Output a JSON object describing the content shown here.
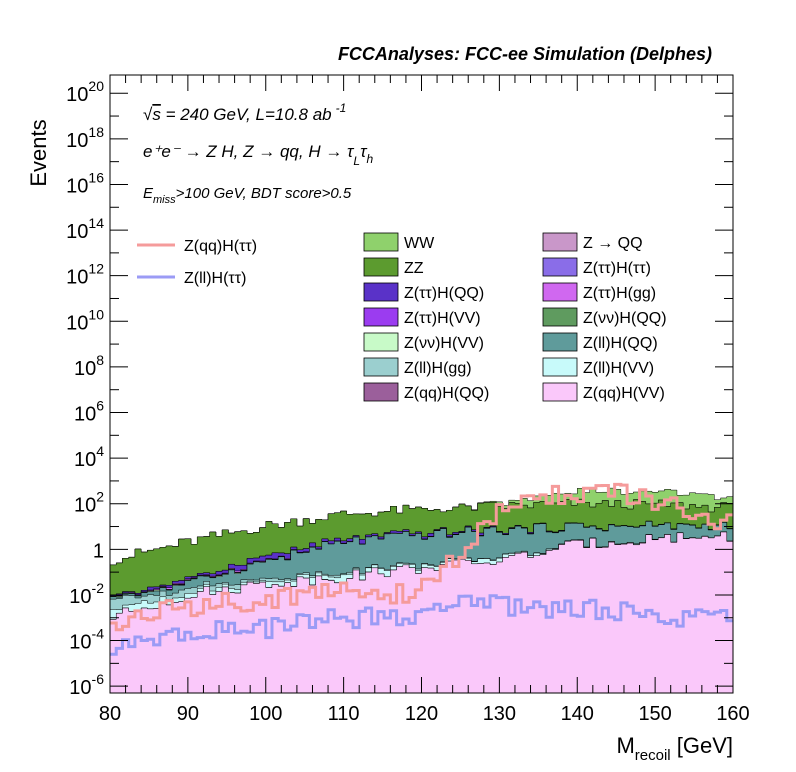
{
  "chart_data": {
    "type": "area",
    "title": "FCCAnalyses: FCC-ee Simulation (Delphes)",
    "xlabel": "M",
    "xlabel_sub": "recoil",
    "xlabel_unit": " [GeV]",
    "ylabel": "Events",
    "xlim": [
      80,
      160
    ],
    "ylim_log10": [
      -6.3,
      20.8
    ],
    "log_y": true,
    "x_ticks": [
      "80",
      "90",
      "100",
      "110",
      "120",
      "130",
      "140",
      "150",
      "160"
    ],
    "y_ticks": [
      {
        "base": "10",
        "exp": "-6"
      },
      {
        "base": "10",
        "exp": "-4"
      },
      {
        "base": "10",
        "exp": "-2"
      },
      {
        "base": "1",
        "exp": ""
      },
      {
        "base": "10",
        "exp": "2"
      },
      {
        "base": "10",
        "exp": "4"
      },
      {
        "base": "10",
        "exp": "6"
      },
      {
        "base": "10",
        "exp": "8"
      },
      {
        "base": "10",
        "exp": "10"
      },
      {
        "base": "10",
        "exp": "12"
      },
      {
        "base": "10",
        "exp": "14"
      },
      {
        "base": "10",
        "exp": "16"
      },
      {
        "base": "10",
        "exp": "18"
      },
      {
        "base": "10",
        "exp": "20"
      }
    ],
    "annotations": {
      "line1_pre": "√",
      "line1_s": "s",
      "line1_main": " = 240 GeV, L=10.8 ab",
      "line1_sup": "-1",
      "line2": "e⁺e⁻ → Z H, Z → qq, H → τ",
      "line2_sub1": "L",
      "line2_tau": "τ",
      "line2_sub2": "h",
      "line3_E": "E",
      "line3_sub": "miss",
      "line3_rest": ">100 GeV, BDT score>0.5"
    },
    "legend_placement": "top",
    "signals": [
      {
        "name": "Z(qq)H(ττ)",
        "color": "#f59b9b",
        "x_nodes": [
          80,
          83,
          90,
          100,
          110,
          118,
          122,
          126,
          130,
          135,
          140,
          145,
          150,
          155,
          160
        ],
        "log10_nodes": [
          -3.5,
          -3.0,
          -2.5,
          -2.2,
          -1.8,
          -2.0,
          -1.3,
          0.2,
          1.6,
          2.35,
          2.5,
          2.45,
          2.1,
          1.5,
          1.05
        ]
      },
      {
        "name": "Z(ll)H(ττ)",
        "color": "#9b9bf5",
        "x_nodes": [
          80,
          90,
          100,
          110,
          118,
          122,
          126,
          130,
          140,
          150,
          160
        ],
        "log10_nodes": [
          -4.5,
          -3.6,
          -3.5,
          -3.0,
          -3.0,
          -2.5,
          -2.2,
          -2.5,
          -2.6,
          -2.9,
          -3.0
        ]
      }
    ],
    "backgrounds": [
      {
        "name": "WW",
        "color": "#8fd16c",
        "x_nodes": [
          80,
          90,
          100,
          110,
          120,
          126,
          130,
          135,
          140,
          145,
          150,
          155,
          160
        ],
        "log10_nodes": [
          -3.0,
          -3.0,
          -3.0,
          -3.0,
          -3.0,
          0.5,
          1.5,
          2.1,
          2.45,
          2.5,
          2.4,
          2.2,
          2.0
        ]
      },
      {
        "name": "Z → QQ",
        "color": "#c997c9",
        "x_nodes": [
          80,
          160
        ],
        "log10_nodes": [
          -4.0,
          -4.0
        ]
      },
      {
        "name": "ZZ",
        "color": "#5c9b2f",
        "x_nodes": [
          80,
          90,
          100,
          110,
          120,
          125,
          130,
          140,
          150,
          160
        ],
        "log10_nodes": [
          -0.5,
          0.3,
          1.0,
          1.5,
          1.7,
          1.75,
          1.85,
          1.95,
          1.9,
          1.75
        ]
      },
      {
        "name": "Z(ττ)H(ττ)",
        "color": "#8a6de8",
        "x_nodes": [
          80,
          130,
          135,
          160
        ],
        "log10_nodes": [
          -6.0,
          -6.0,
          -1.5,
          -1.5
        ]
      },
      {
        "name": "Z(ττ)H(QQ)",
        "color": "#5a32c8",
        "x_nodes": [
          80,
          90,
          100,
          110,
          120,
          125,
          130,
          140,
          150,
          160
        ],
        "log10_nodes": [
          -3.0,
          -2.0,
          -0.8,
          -0.2,
          0.0,
          -0.1,
          -0.3,
          -0.5,
          -0.6,
          -0.7
        ]
      },
      {
        "name": "Z(ττ)H(gg)",
        "color": "#d068f0",
        "x_nodes": [
          80,
          90,
          100,
          110,
          120,
          130,
          140,
          150,
          160
        ],
        "log10_nodes": [
          -3.5,
          -2.5,
          -1.8,
          -1.5,
          -1.2,
          -1.5,
          -1.6,
          -1.7,
          -1.8
        ]
      },
      {
        "name": "Z(ττ)H(VV)",
        "color": "#9b3cf0",
        "x_nodes": [
          80,
          90,
          100,
          110,
          120,
          125,
          130,
          140,
          150,
          160
        ],
        "log10_nodes": [
          -4.0,
          -3.0,
          -2.2,
          -1.6,
          -1.2,
          -0.6,
          -0.8,
          -1.0,
          -1.1,
          -1.2
        ]
      },
      {
        "name": "Z(νν)H(QQ)",
        "color": "#5f9b5f",
        "x_nodes": [
          80,
          90,
          100,
          110,
          120,
          130,
          140,
          150,
          160
        ],
        "log10_nodes": [
          -6.0,
          -6.0,
          -5.0,
          -4.0,
          -3.5,
          -3.0,
          -3.0,
          -3.0,
          -3.0
        ]
      },
      {
        "name": "Z(νν)H(VV)",
        "color": "#c8fac8",
        "x_nodes": [
          80,
          90,
          100,
          110,
          120,
          130,
          140,
          150,
          160
        ],
        "log10_nodes": [
          -3.5,
          -2.6,
          -2.2,
          -1.9,
          -1.7,
          -1.5,
          -1.4,
          -1.4,
          -1.4
        ]
      },
      {
        "name": "Z(ll)H(QQ)",
        "color": "#5f9b9b",
        "x_nodes": [
          80,
          90,
          100,
          110,
          120,
          125,
          130,
          140,
          150,
          160
        ],
        "log10_nodes": [
          -3.0,
          -1.8,
          -0.6,
          0.3,
          0.6,
          0.7,
          0.8,
          0.9,
          0.9,
          0.8
        ]
      },
      {
        "name": "Z(ll)H(gg)",
        "color": "#9bcfcf",
        "x_nodes": [
          80,
          90,
          100,
          110,
          120,
          130,
          140,
          150,
          160
        ],
        "log10_nodes": [
          -2.5,
          -2.2,
          -2.0,
          -2.0,
          -1.9,
          -1.8,
          -1.9,
          -2.0,
          -2.0
        ]
      },
      {
        "name": "Z(ll)H(VV)",
        "color": "#c8fafa",
        "x_nodes": [
          80,
          90,
          100,
          110,
          120,
          130,
          140,
          150,
          160
        ],
        "log10_nodes": [
          -3.0,
          -2.5,
          -2.0,
          -1.6,
          -1.3,
          -1.0,
          -1.0,
          -1.1,
          -1.2
        ]
      },
      {
        "name": "Z(qq)H(QQ)",
        "color": "#9b5f9b",
        "x_nodes": [
          80,
          90,
          100,
          110,
          120,
          130,
          140,
          150,
          160
        ],
        "log10_nodes": [
          -5.0,
          -4.5,
          -3.5,
          -3.0,
          -3.0,
          -3.0,
          -3.0,
          -3.0,
          -3.0
        ]
      },
      {
        "name": "Z(qq)H(VV)",
        "color": "#fac8fa",
        "x_nodes": [
          80,
          90,
          100,
          110,
          120,
          130,
          140,
          150,
          160
        ],
        "log10_nodes": [
          -3.0,
          -2.0,
          -1.5,
          -1.2,
          -0.8,
          -0.5,
          0.2,
          0.5,
          0.6
        ]
      }
    ]
  }
}
